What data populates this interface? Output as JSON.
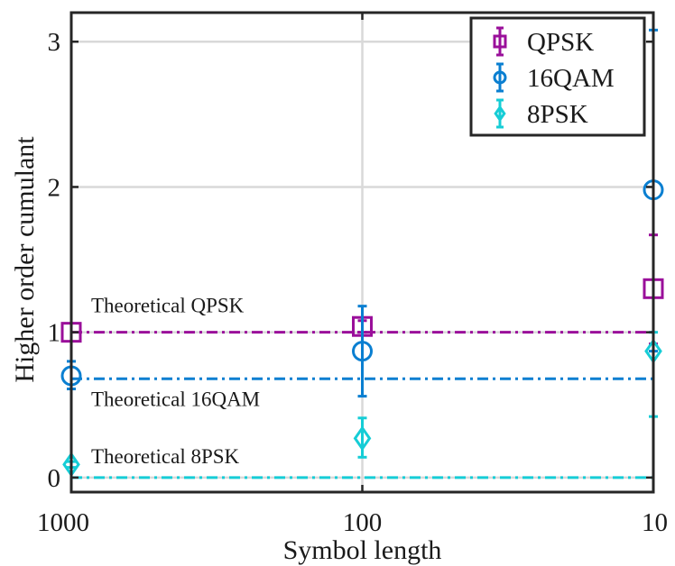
{
  "chart_data": {
    "type": "scatter",
    "title": "",
    "xlabel": "Symbol length",
    "ylabel": "Higher order cumulant",
    "x_scale": "log",
    "x_reversed": true,
    "categories": [
      "1000",
      "100",
      "10"
    ],
    "x": [
      1000,
      100,
      10
    ],
    "xlim": [
      1000,
      10
    ],
    "ylim": [
      -0.1,
      3.2
    ],
    "yticks": [
      "0",
      "1",
      "2",
      "3"
    ],
    "grid": true,
    "legend": "top-right",
    "series": [
      {
        "name": "QPSK",
        "color": "#9a0f9a",
        "marker": "square",
        "values": [
          1.0,
          1.04,
          1.3
        ],
        "err_low": [
          1.0,
          1.0,
          0.92
        ],
        "err_high": [
          1.0,
          1.08,
          1.67
        ],
        "theoretical": 1.0,
        "theoretical_label": "Theoretical QPSK"
      },
      {
        "name": "16QAM",
        "color": "#0a7fd1",
        "marker": "circle",
        "values": [
          0.7,
          0.87,
          1.98
        ],
        "err_low": [
          0.61,
          0.56,
          0.87
        ],
        "err_high": [
          0.8,
          1.18,
          3.08
        ],
        "theoretical": 0.68,
        "theoretical_label": "Theoretical 16QAM"
      },
      {
        "name": "8PSK",
        "color": "#16cdd6",
        "marker": "diamond",
        "values": [
          0.09,
          0.27,
          0.87
        ],
        "err_low": [
          0.07,
          0.14,
          0.42
        ],
        "err_high": [
          0.11,
          0.41,
          1.0
        ],
        "theoretical": 0.0,
        "theoretical_label": "Theoretical 8PSK"
      }
    ]
  }
}
